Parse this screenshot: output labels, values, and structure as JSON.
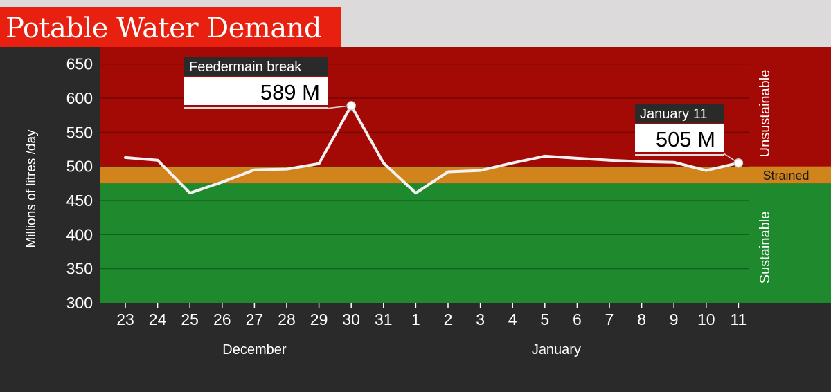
{
  "title": "Potable Water Demand",
  "colors": {
    "unsustainable": "#a30a05",
    "strained": "#d2841c",
    "sustainable": "#1f8a2d",
    "line": "#f2f2f2",
    "background": "#2a2a2a"
  },
  "zones": [
    {
      "name": "Unsustainable",
      "from": 500,
      "to": 675
    },
    {
      "name": "Strained",
      "from": 475,
      "to": 500
    },
    {
      "name": "Sustainable",
      "from": 300,
      "to": 475
    }
  ],
  "callouts": [
    {
      "header": "Feedermain break",
      "value": "589 M"
    },
    {
      "header": "January 11",
      "value": "505 M"
    }
  ],
  "chart_data": {
    "type": "line",
    "title": "Potable Water Demand",
    "ylabel": "Millions of litres /day",
    "xlabel": "",
    "ylim": [
      300,
      675
    ],
    "yticks": [
      300,
      350,
      400,
      450,
      500,
      550,
      600,
      650
    ],
    "months": [
      {
        "label": "December",
        "from": 0,
        "to": 8
      },
      {
        "label": "January",
        "from": 9,
        "to": 19
      }
    ],
    "x": [
      "23",
      "24",
      "25",
      "26",
      "27",
      "28",
      "29",
      "30",
      "31",
      "1",
      "2",
      "3",
      "4",
      "5",
      "6",
      "7",
      "8",
      "9",
      "10",
      "11"
    ],
    "series": [
      {
        "values": [
          513,
          509,
          461,
          477,
          495,
          496,
          504,
          589,
          505,
          461,
          492,
          494,
          505,
          515,
          512,
          509,
          507,
          506,
          494,
          505
        ]
      }
    ],
    "annotations": [
      {
        "index": 7,
        "header": "Feedermain break",
        "value": "589 M"
      },
      {
        "index": 19,
        "header": "January 11",
        "value": "505 M"
      }
    ],
    "grid": true
  }
}
